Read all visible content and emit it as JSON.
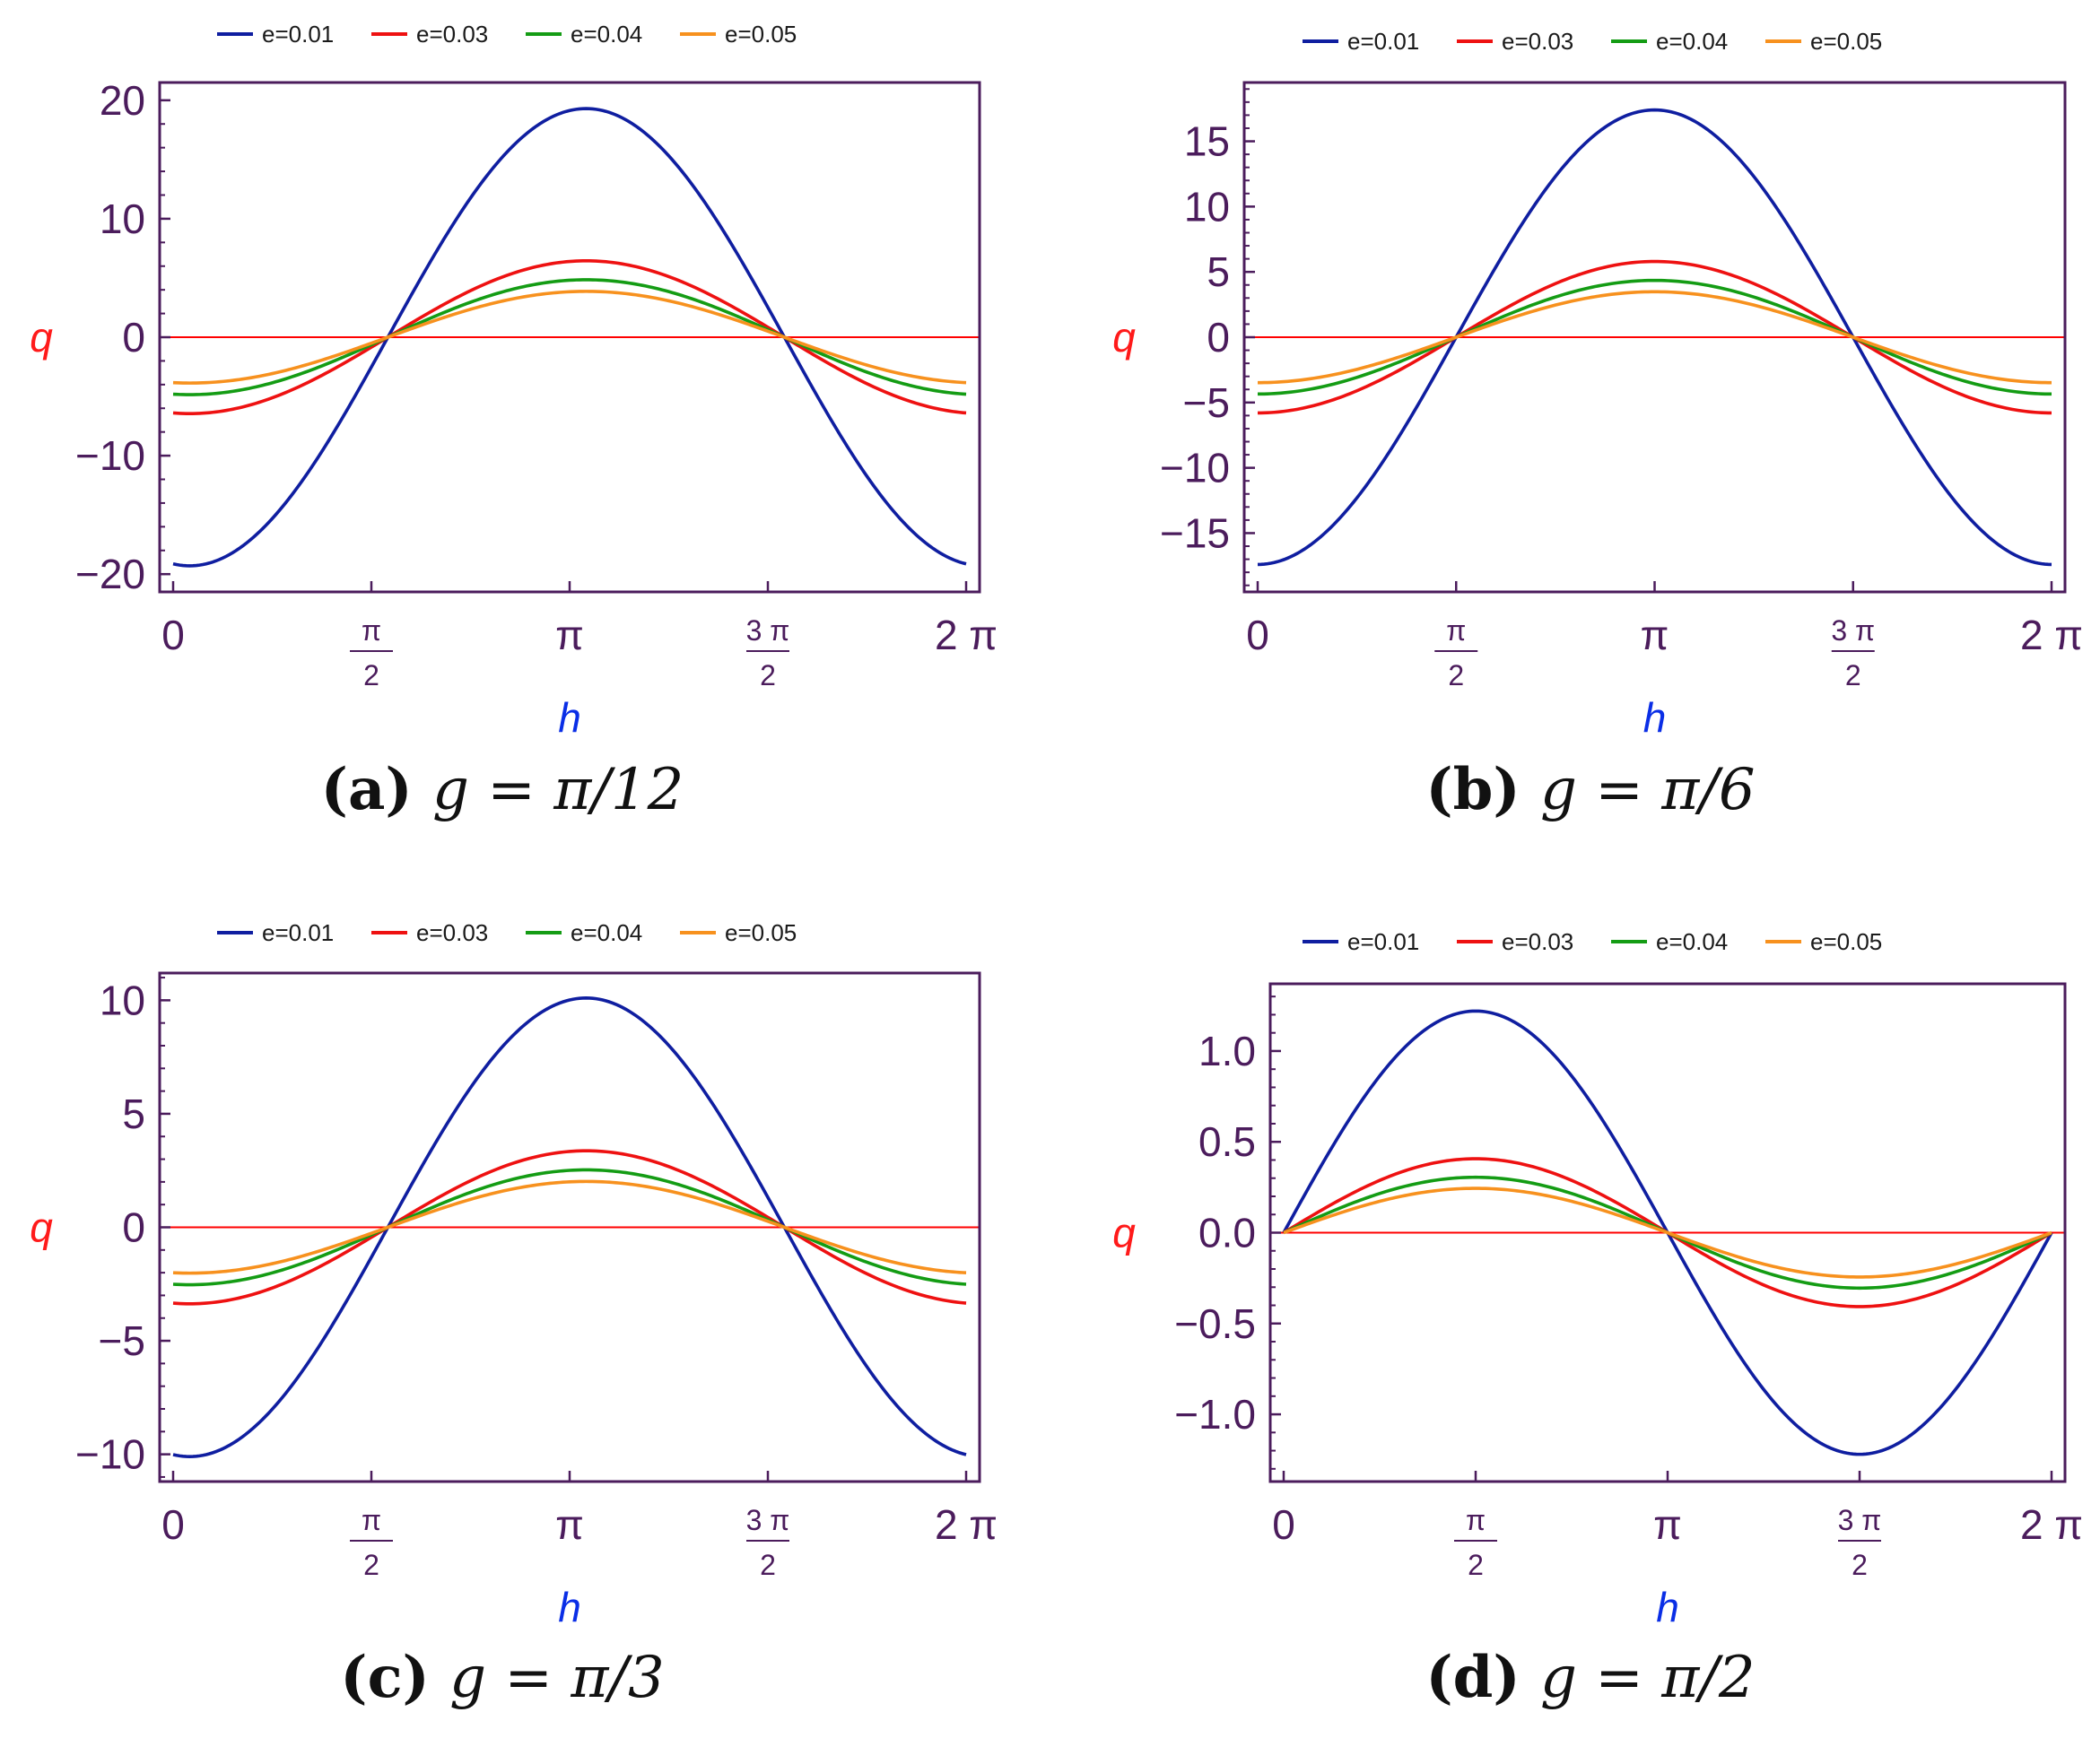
{
  "colors": {
    "frame": "#4b1c5c",
    "zero_line": "#ff0000",
    "xlabel": "#0a2ee6",
    "ylabel": "#ff1a1a"
  },
  "chart_data": [
    {
      "id": "a",
      "type": "line",
      "caption_letter": "(a)",
      "caption_math": "g = π/12",
      "xlabel": "h",
      "ylabel": "q",
      "xlim": [
        0,
        6.2832
      ],
      "ylim": [
        -21.5,
        21.5
      ],
      "yticks": [
        {
          "v": 20,
          "label": "20"
        },
        {
          "v": 10,
          "label": "10"
        },
        {
          "v": 0,
          "label": "0"
        },
        {
          "v": -10,
          "label": "−10"
        },
        {
          "v": -20,
          "label": "−20"
        }
      ],
      "minor_step": 2,
      "xticks": [
        {
          "v": 0,
          "label": "0"
        },
        {
          "v": 1.5708,
          "num": "π",
          "den": "2"
        },
        {
          "v": 3.1416,
          "label": "π"
        },
        {
          "v": 4.7124,
          "num": "3 π",
          "den": "2"
        },
        {
          "v": 6.2832,
          "label": "2 π"
        }
      ],
      "function": "-cos",
      "shift": 0.1309,
      "series": [
        {
          "name": "e=0.01",
          "amplitude": 19.3,
          "color": "#0f1ea0"
        },
        {
          "name": "e=0.03",
          "amplitude": 6.45,
          "color": "#ee1111"
        },
        {
          "name": "e=0.04",
          "amplitude": 4.85,
          "color": "#149c14"
        },
        {
          "name": "e=0.05",
          "amplitude": 3.87,
          "color": "#f7911e"
        }
      ]
    },
    {
      "id": "b",
      "type": "line",
      "caption_letter": "(b)",
      "caption_math": "g = π/6",
      "xlabel": "h",
      "ylabel": "q",
      "xlim": [
        0,
        6.2832
      ],
      "ylim": [
        -19.5,
        19.5
      ],
      "yticks": [
        {
          "v": 15,
          "label": "15"
        },
        {
          "v": 10,
          "label": "10"
        },
        {
          "v": 5,
          "label": "5"
        },
        {
          "v": 0,
          "label": "0"
        },
        {
          "v": -5,
          "label": "−5"
        },
        {
          "v": -10,
          "label": "−10"
        },
        {
          "v": -15,
          "label": "−15"
        }
      ],
      "minor_step": 1,
      "xticks": [
        {
          "v": 0,
          "label": "0"
        },
        {
          "v": 1.5708,
          "num": "π",
          "den": "2"
        },
        {
          "v": 3.1416,
          "label": "π"
        },
        {
          "v": 4.7124,
          "num": "3 π",
          "den": "2"
        },
        {
          "v": 6.2832,
          "label": "2 π"
        }
      ],
      "function": "-cos",
      "shift": 0.0,
      "series": [
        {
          "name": "e=0.01",
          "amplitude": 17.4,
          "color": "#0f1ea0"
        },
        {
          "name": "e=0.03",
          "amplitude": 5.8,
          "color": "#ee1111"
        },
        {
          "name": "e=0.04",
          "amplitude": 4.35,
          "color": "#149c14"
        },
        {
          "name": "e=0.05",
          "amplitude": 3.48,
          "color": "#f7911e"
        }
      ]
    },
    {
      "id": "c",
      "type": "line",
      "caption_letter": "(c)",
      "caption_math": "g = π/3",
      "xlabel": "h",
      "ylabel": "q",
      "xlim": [
        0,
        6.2832
      ],
      "ylim": [
        -11.2,
        11.2
      ],
      "yticks": [
        {
          "v": 10,
          "label": "10"
        },
        {
          "v": 5,
          "label": "5"
        },
        {
          "v": 0,
          "label": "0"
        },
        {
          "v": -5,
          "label": "−5"
        },
        {
          "v": -10,
          "label": "−10"
        }
      ],
      "minor_step": 1,
      "xticks": [
        {
          "v": 0,
          "label": "0"
        },
        {
          "v": 1.5708,
          "num": "π",
          "den": "2"
        },
        {
          "v": 3.1416,
          "label": "π"
        },
        {
          "v": 4.7124,
          "num": "3 π",
          "den": "2"
        },
        {
          "v": 6.2832,
          "label": "2 π"
        }
      ],
      "function": "-cos",
      "shift": 0.1309,
      "series": [
        {
          "name": "e=0.01",
          "amplitude": 10.1,
          "color": "#0f1ea0"
        },
        {
          "name": "e=0.03",
          "amplitude": 3.37,
          "color": "#ee1111"
        },
        {
          "name": "e=0.04",
          "amplitude": 2.53,
          "color": "#149c14"
        },
        {
          "name": "e=0.05",
          "amplitude": 2.02,
          "color": "#f7911e"
        }
      ]
    },
    {
      "id": "d",
      "type": "line",
      "caption_letter": "(d)",
      "caption_math": "g = π/2",
      "xlabel": "h",
      "ylabel": "q",
      "xlim": [
        0,
        6.2832
      ],
      "ylim": [
        -1.37,
        1.37
      ],
      "yticks": [
        {
          "v": 1.0,
          "label": "1.0"
        },
        {
          "v": 0.5,
          "label": "0.5"
        },
        {
          "v": 0.0,
          "label": "0.0"
        },
        {
          "v": -0.5,
          "label": "−0.5"
        },
        {
          "v": -1.0,
          "label": "−1.0"
        }
      ],
      "minor_step": 0.1,
      "xticks": [
        {
          "v": 0,
          "label": "0"
        },
        {
          "v": 1.5708,
          "num": "π",
          "den": "2"
        },
        {
          "v": 3.1416,
          "label": "π"
        },
        {
          "v": 4.7124,
          "num": "3 π",
          "den": "2"
        },
        {
          "v": 6.2832,
          "label": "2 π"
        }
      ],
      "function": "sin",
      "shift": 0.0,
      "series": [
        {
          "name": "e=0.01",
          "amplitude": 1.22,
          "color": "#0f1ea0"
        },
        {
          "name": "e=0.03",
          "amplitude": 0.407,
          "color": "#ee1111"
        },
        {
          "name": "e=0.04",
          "amplitude": 0.305,
          "color": "#149c14"
        },
        {
          "name": "e=0.05",
          "amplitude": 0.244,
          "color": "#f7911e"
        }
      ]
    }
  ]
}
